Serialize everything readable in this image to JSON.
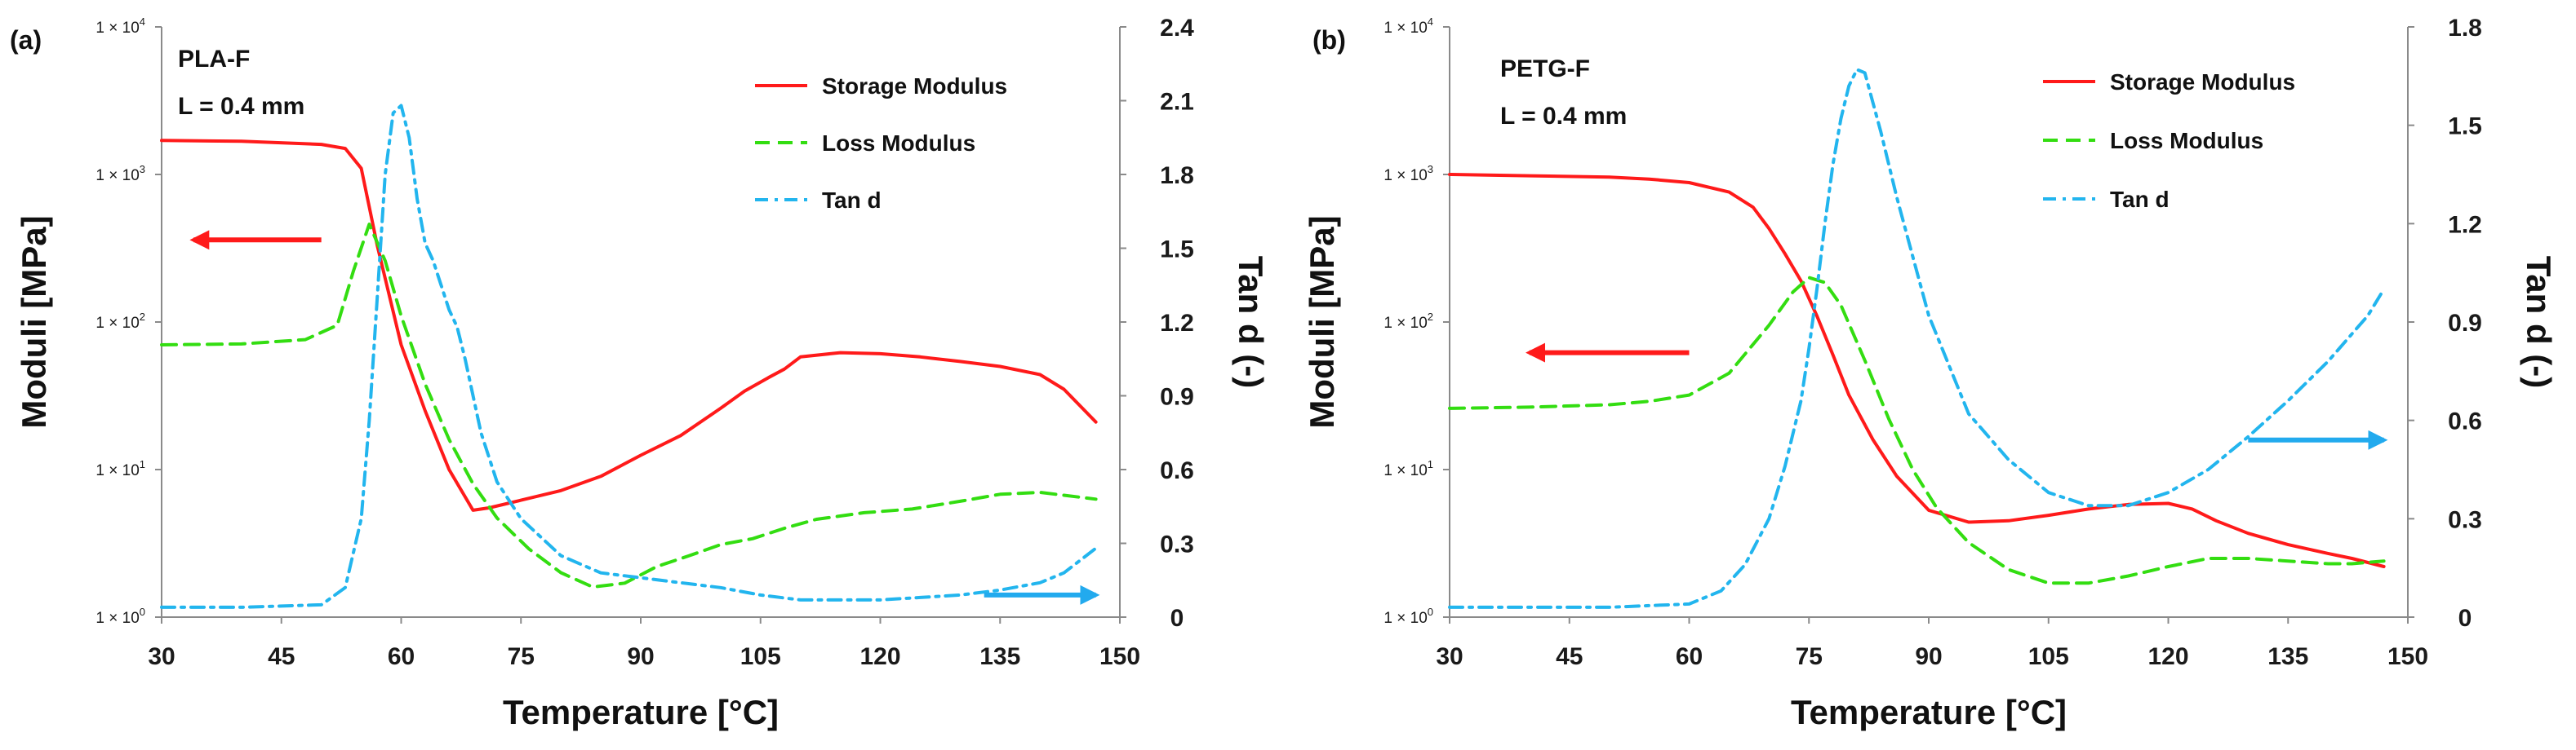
{
  "colors": {
    "storage": "#ff1a1a",
    "loss": "#33dd11",
    "tan": "#22b5ee",
    "axis": "#8a8a8a",
    "arrow_red": "#ff1a1a",
    "arrow_blue": "#22aaee"
  },
  "legend_labels": [
    "Storage Modulus",
    "Loss Modulus",
    "Tan d"
  ],
  "chart_data": [
    {
      "type": "line",
      "panel": "(a)",
      "material": "PLA-F",
      "layer": "L = 0.4 mm",
      "xlabel": "Temperature [°C]",
      "ylabel": "Moduli [MPa]",
      "y2label": "Tan d (-)",
      "xlim": [
        30,
        150
      ],
      "xticks": [
        "30",
        "45",
        "60",
        "75",
        "90",
        "105",
        "120",
        "135",
        "150"
      ],
      "ylog_decades": [
        0,
        4
      ],
      "ylog_ticks": [
        {
          "value": 1,
          "mant": "1 × 10",
          "exp": "0"
        },
        {
          "value": 10,
          "mant": "1 × 10",
          "exp": "1"
        },
        {
          "value": 100,
          "mant": "1 × 10",
          "exp": "2"
        },
        {
          "value": 1000,
          "mant": "1 × 10",
          "exp": "3"
        },
        {
          "value": 10000,
          "mant": "1 × 10",
          "exp": "4"
        }
      ],
      "y2lim": [
        0,
        2.4
      ],
      "y2ticks": [
        "0",
        "0.3",
        "0.6",
        "0.9",
        "1.2",
        "1.5",
        "1.8",
        "2.1",
        "2.4"
      ],
      "series": [
        {
          "name": "Storage Modulus",
          "axis": "left",
          "dash": "solid",
          "x": [
            30,
            40,
            50,
            53,
            55,
            57,
            60,
            63,
            66,
            69,
            71,
            75,
            80,
            85,
            90,
            95,
            100,
            103,
            106,
            108,
            110,
            115,
            120,
            125,
            130,
            135,
            140,
            143,
            147
          ],
          "y": [
            1700,
            1680,
            1600,
            1500,
            1100,
            330,
            70,
            25,
            10,
            5.3,
            5.5,
            6.2,
            7.2,
            9,
            12.5,
            17,
            26,
            34,
            42,
            48,
            58,
            62,
            61,
            58,
            54,
            50,
            44,
            35,
            21
          ]
        },
        {
          "name": "Loss Modulus",
          "axis": "left",
          "dash": "dashed",
          "x": [
            30,
            40,
            48,
            52,
            54,
            56,
            58,
            60,
            63,
            66,
            69,
            72,
            76,
            80,
            84,
            88,
            92,
            96,
            100,
            104,
            108,
            112,
            118,
            124,
            130,
            135,
            140,
            143,
            147
          ],
          "y": [
            70,
            71,
            76,
            95,
            220,
            460,
            260,
            110,
            38,
            16,
            8,
            4.7,
            2.9,
            2,
            1.6,
            1.7,
            2.2,
            2.6,
            3.1,
            3.4,
            4,
            4.6,
            5.1,
            5.4,
            6.1,
            6.8,
            7,
            6.7,
            6.3
          ]
        },
        {
          "name": "Tan d",
          "axis": "right",
          "dash": "dashdot",
          "x": [
            30,
            40,
            50,
            53,
            55,
            56,
            57,
            58,
            59,
            60,
            61,
            62,
            63,
            64,
            65,
            66,
            67,
            68,
            70,
            72,
            75,
            80,
            85,
            90,
            95,
            100,
            105,
            110,
            115,
            120,
            125,
            130,
            135,
            140,
            143,
            147
          ],
          "y": [
            0.04,
            0.04,
            0.05,
            0.12,
            0.4,
            0.8,
            1.3,
            1.8,
            2.05,
            2.08,
            1.95,
            1.7,
            1.52,
            1.45,
            1.35,
            1.25,
            1.18,
            1.05,
            0.75,
            0.55,
            0.4,
            0.25,
            0.18,
            0.16,
            0.14,
            0.12,
            0.09,
            0.07,
            0.07,
            0.07,
            0.08,
            0.09,
            0.11,
            0.14,
            0.18,
            0.28
          ]
        }
      ],
      "arrows": [
        {
          "color": "arrow_red",
          "direction": "left",
          "x0": 50,
          "x1": 34,
          "ylog": 360
        },
        {
          "color": "arrow_blue",
          "direction": "right",
          "x0": 133,
          "x1": 147,
          "yright": 0.09
        }
      ]
    },
    {
      "type": "line",
      "panel": "(b)",
      "material": "PETG-F",
      "layer": "L = 0.4 mm",
      "xlabel": "Temperature [°C]",
      "ylabel": "Moduli [MPa]",
      "y2label": "Tan d (-)",
      "xlim": [
        30,
        150
      ],
      "xticks": [
        "30",
        "45",
        "60",
        "75",
        "90",
        "105",
        "120",
        "135",
        "150"
      ],
      "ylog_decades": [
        0,
        4
      ],
      "ylog_ticks": [
        {
          "value": 1,
          "mant": "1 × 10",
          "exp": "0"
        },
        {
          "value": 10,
          "mant": "1 × 10",
          "exp": "1"
        },
        {
          "value": 100,
          "mant": "1 × 10",
          "exp": "2"
        },
        {
          "value": 1000,
          "mant": "1 × 10",
          "exp": "3"
        },
        {
          "value": 10000,
          "mant": "1 × 10",
          "exp": "4"
        }
      ],
      "y2lim": [
        0,
        1.8
      ],
      "y2ticks": [
        "0",
        "0.3",
        "0.6",
        "0.9",
        "1.2",
        "1.5",
        "1.8"
      ],
      "series": [
        {
          "name": "Storage Modulus",
          "axis": "left",
          "dash": "solid",
          "x": [
            30,
            40,
            50,
            55,
            60,
            65,
            68,
            70,
            72,
            74,
            76,
            78,
            80,
            83,
            86,
            90,
            95,
            100,
            105,
            110,
            115,
            120,
            123,
            126,
            130,
            135,
            140,
            143,
            147
          ],
          "y": [
            1000,
            980,
            960,
            930,
            880,
            760,
            600,
            430,
            290,
            190,
            110,
            60,
            32,
            16,
            9,
            5.3,
            4.4,
            4.5,
            4.9,
            5.4,
            5.8,
            5.9,
            5.4,
            4.5,
            3.7,
            3.1,
            2.7,
            2.5,
            2.2
          ]
        },
        {
          "name": "Loss Modulus",
          "axis": "left",
          "dash": "dashed",
          "x": [
            30,
            40,
            50,
            55,
            60,
            65,
            70,
            73,
            75,
            77,
            79,
            82,
            85,
            88,
            91,
            95,
            100,
            105,
            110,
            115,
            120,
            125,
            130,
            135,
            140,
            143,
            147
          ],
          "y": [
            26,
            26.5,
            27.5,
            29,
            32,
            45,
            95,
            160,
            200,
            185,
            130,
            55,
            22,
            10,
            5.5,
            3.2,
            2.1,
            1.7,
            1.7,
            1.9,
            2.2,
            2.5,
            2.5,
            2.4,
            2.3,
            2.3,
            2.4
          ]
        },
        {
          "name": "Tan d",
          "axis": "right",
          "dash": "dashdot",
          "x": [
            30,
            40,
            50,
            60,
            64,
            67,
            70,
            72,
            74,
            75,
            76,
            77,
            78,
            79,
            80,
            81,
            82,
            84,
            86,
            88,
            90,
            95,
            100,
            105,
            110,
            115,
            120,
            125,
            130,
            135,
            140,
            145,
            147
          ],
          "y": [
            0.03,
            0.03,
            0.03,
            0.04,
            0.08,
            0.16,
            0.3,
            0.46,
            0.66,
            0.82,
            1.0,
            1.2,
            1.38,
            1.52,
            1.62,
            1.67,
            1.66,
            1.48,
            1.28,
            1.1,
            0.92,
            0.62,
            0.48,
            0.38,
            0.34,
            0.34,
            0.38,
            0.45,
            0.55,
            0.66,
            0.78,
            0.92,
            1.0
          ]
        }
      ],
      "arrows": [
        {
          "color": "arrow_red",
          "direction": "left",
          "x0": 60,
          "x1": 40,
          "ylog": 62
        },
        {
          "color": "arrow_blue",
          "direction": "right",
          "x0": 130,
          "x1": 147,
          "yright": 0.54
        }
      ]
    }
  ]
}
